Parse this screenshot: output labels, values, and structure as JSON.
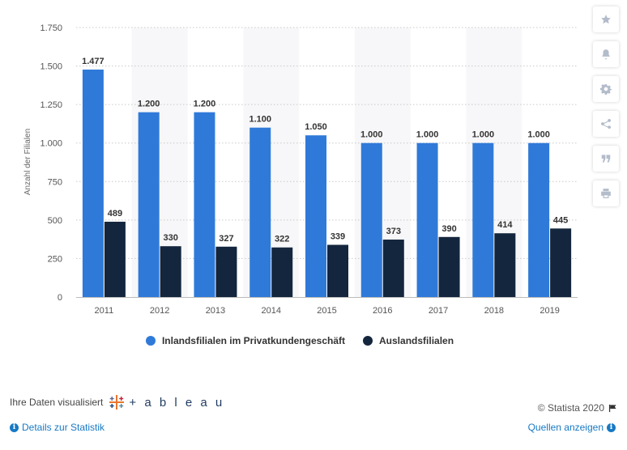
{
  "chart_data": {
    "type": "bar",
    "categories": [
      "2011",
      "2012",
      "2013",
      "2014",
      "2015",
      "2016",
      "2017",
      "2018",
      "2019"
    ],
    "series": [
      {
        "name": "Inlandsfilialen im Privatkundengeschäft",
        "color": "#2f7ad9",
        "values": [
          1477,
          1200,
          1200,
          1100,
          1050,
          1000,
          1000,
          1000,
          1000
        ]
      },
      {
        "name": "Auslandsfilialen",
        "color": "#13263d",
        "values": [
          489,
          330,
          327,
          322,
          339,
          373,
          390,
          414,
          445
        ]
      }
    ],
    "value_labels": [
      [
        "1.477",
        "1.200",
        "1.200",
        "1.100",
        "1.050",
        "1.000",
        "1.000",
        "1.000",
        "1.000"
      ],
      [
        "489",
        "330",
        "327",
        "322",
        "339",
        "373",
        "390",
        "414",
        "445"
      ]
    ],
    "ylabel": "Anzahl der Filialen",
    "ylim": [
      0,
      1750
    ],
    "yticks": [
      0,
      250,
      500,
      750,
      1000,
      1250,
      1500,
      1750
    ],
    "ytick_labels": [
      "0",
      "250",
      "500",
      "750",
      "1.000",
      "1.250",
      "1.500",
      "1.750"
    ],
    "grid": true,
    "legend_placement": "bottom-center"
  },
  "toolbar": {
    "icons": [
      "star-icon",
      "bell-icon",
      "gear-icon",
      "share-icon",
      "quote-icon",
      "print-icon"
    ]
  },
  "footer": {
    "visualized_label": "Ihre Daten visualisiert",
    "tableau_label": "+ a b l e a u",
    "copyright": "© Statista 2020",
    "details_link": "Details zur Statistik",
    "sources_link": "Quellen anzeigen"
  }
}
